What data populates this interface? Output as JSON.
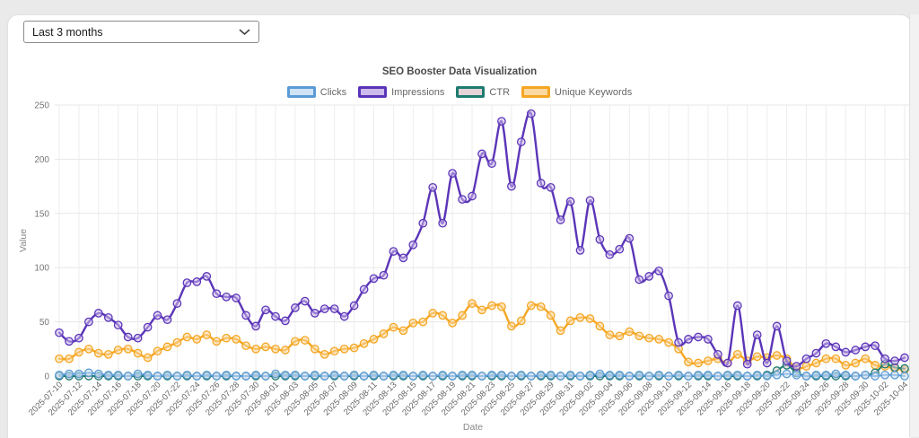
{
  "controls": {
    "date_range": {
      "value": "Last 3 months"
    }
  },
  "chart_data": {
    "type": "line",
    "title": "SEO Booster Data Visualization",
    "xlabel": "Date",
    "ylabel": "Value",
    "ylim": [
      0,
      250
    ],
    "yticks": [
      0,
      50,
      100,
      150,
      200,
      250
    ],
    "x_tick_step": 2,
    "grid": true,
    "legend_position": "top",
    "x": [
      "2025-07-10",
      "2025-07-11",
      "2025-07-12",
      "2025-07-13",
      "2025-07-14",
      "2025-07-15",
      "2025-07-16",
      "2025-07-17",
      "2025-07-18",
      "2025-07-19",
      "2025-07-20",
      "2025-07-21",
      "2025-07-22",
      "2025-07-23",
      "2025-07-24",
      "2025-07-25",
      "2025-07-26",
      "2025-07-27",
      "2025-07-28",
      "2025-07-29",
      "2025-07-30",
      "2025-07-31",
      "2025-08-01",
      "2025-08-02",
      "2025-08-03",
      "2025-08-04",
      "2025-08-05",
      "2025-08-06",
      "2025-08-07",
      "2025-08-08",
      "2025-08-09",
      "2025-08-10",
      "2025-08-11",
      "2025-08-12",
      "2025-08-13",
      "2025-08-14",
      "2025-08-15",
      "2025-08-16",
      "2025-08-17",
      "2025-08-18",
      "2025-08-19",
      "2025-08-20",
      "2025-08-21",
      "2025-08-22",
      "2025-08-23",
      "2025-08-24",
      "2025-08-25",
      "2025-08-26",
      "2025-08-27",
      "2025-08-28",
      "2025-08-29",
      "2025-08-30",
      "2025-08-31",
      "2025-09-01",
      "2025-09-02",
      "2025-09-03",
      "2025-09-04",
      "2025-09-05",
      "2025-09-06",
      "2025-09-07",
      "2025-09-08",
      "2025-09-09",
      "2025-09-10",
      "2025-09-11",
      "2025-09-12",
      "2025-09-13",
      "2025-09-14",
      "2025-09-15",
      "2025-09-16",
      "2025-09-17",
      "2025-09-18",
      "2025-09-19",
      "2025-09-20",
      "2025-09-21",
      "2025-09-22",
      "2025-09-23",
      "2025-09-24",
      "2025-09-25",
      "2025-09-26",
      "2025-09-27",
      "2025-09-28",
      "2025-09-29",
      "2025-09-30",
      "2025-10-01",
      "2025-10-02",
      "2025-10-03",
      "2025-10-04"
    ],
    "series": [
      {
        "name": "Clicks",
        "color": "#5b9bd5",
        "fill": "#cfe3f5",
        "values": [
          1,
          2,
          2,
          3,
          2,
          1,
          1,
          0,
          2,
          1,
          0,
          1,
          0,
          1,
          0,
          1,
          0,
          1,
          0,
          0,
          1,
          0,
          2,
          1,
          1,
          0,
          1,
          0,
          1,
          0,
          1,
          0,
          1,
          0,
          1,
          1,
          0,
          1,
          0,
          1,
          0,
          1,
          1,
          0,
          1,
          1,
          0,
          1,
          0,
          1,
          1,
          0,
          1,
          0,
          1,
          2,
          1,
          1,
          0,
          1,
          0,
          1,
          0,
          1,
          0,
          1,
          1,
          0,
          1,
          1,
          0,
          1,
          0,
          1,
          2,
          1,
          0,
          1,
          1,
          2,
          1,
          0,
          1,
          0,
          1,
          1,
          0
        ]
      },
      {
        "name": "Impressions",
        "color": "#5b35b8",
        "fill": "#cdbbeb",
        "values": [
          40,
          32,
          35,
          50,
          58,
          54,
          47,
          36,
          35,
          45,
          56,
          52,
          67,
          86,
          87,
          92,
          76,
          73,
          72,
          56,
          46,
          61,
          55,
          51,
          63,
          69,
          58,
          62,
          62,
          55,
          65,
          80,
          90,
          93,
          115,
          109,
          121,
          141,
          174,
          141,
          187,
          163,
          166,
          205,
          196,
          235,
          175,
          216,
          242,
          178,
          174,
          144,
          161,
          116,
          162,
          126,
          112,
          117,
          127,
          89,
          92,
          97,
          74,
          31,
          34,
          36,
          34,
          20,
          12,
          65,
          11,
          38,
          12,
          46,
          14,
          9,
          16,
          21,
          30,
          27,
          22,
          24,
          27,
          28,
          16,
          14,
          17
        ]
      },
      {
        "name": "CTR",
        "color": "#1e7b6f",
        "fill": "#e4d4d8",
        "values": [
          0,
          0,
          0,
          0,
          0,
          0,
          0,
          0,
          0,
          0,
          0,
          0,
          0,
          0,
          0,
          0,
          0,
          0,
          0,
          0,
          0,
          0,
          0,
          0,
          0,
          0,
          0,
          0,
          0,
          0,
          0,
          0,
          0,
          0,
          0,
          0,
          0,
          0,
          0,
          0,
          0,
          0,
          0,
          0,
          0,
          0,
          0,
          0,
          0,
          0,
          0,
          0,
          0,
          0,
          0,
          0,
          0,
          0,
          0,
          0,
          0,
          0,
          0,
          0,
          0,
          0,
          0,
          0,
          0,
          0,
          0,
          0,
          1,
          5,
          10,
          3,
          0,
          0,
          0,
          0,
          0,
          0,
          1,
          3,
          11,
          8,
          7
        ]
      },
      {
        "name": "Unique Keywords",
        "color": "#f5a623",
        "fill": "#fbd9a0",
        "values": [
          16,
          16,
          22,
          25,
          21,
          20,
          24,
          25,
          21,
          17,
          23,
          27,
          31,
          36,
          34,
          38,
          32,
          35,
          34,
          28,
          25,
          27,
          25,
          24,
          32,
          33,
          25,
          20,
          23,
          25,
          26,
          30,
          34,
          39,
          45,
          42,
          49,
          50,
          58,
          56,
          49,
          56,
          67,
          61,
          65,
          64,
          46,
          51,
          65,
          64,
          56,
          42,
          51,
          54,
          53,
          46,
          38,
          37,
          41,
          37,
          35,
          34,
          31,
          25,
          13,
          12,
          14,
          16,
          12,
          20,
          14,
          18,
          17,
          19,
          16,
          7,
          9,
          12,
          16,
          16,
          10,
          12,
          16,
          10,
          9,
          7,
          6
        ]
      }
    ]
  }
}
